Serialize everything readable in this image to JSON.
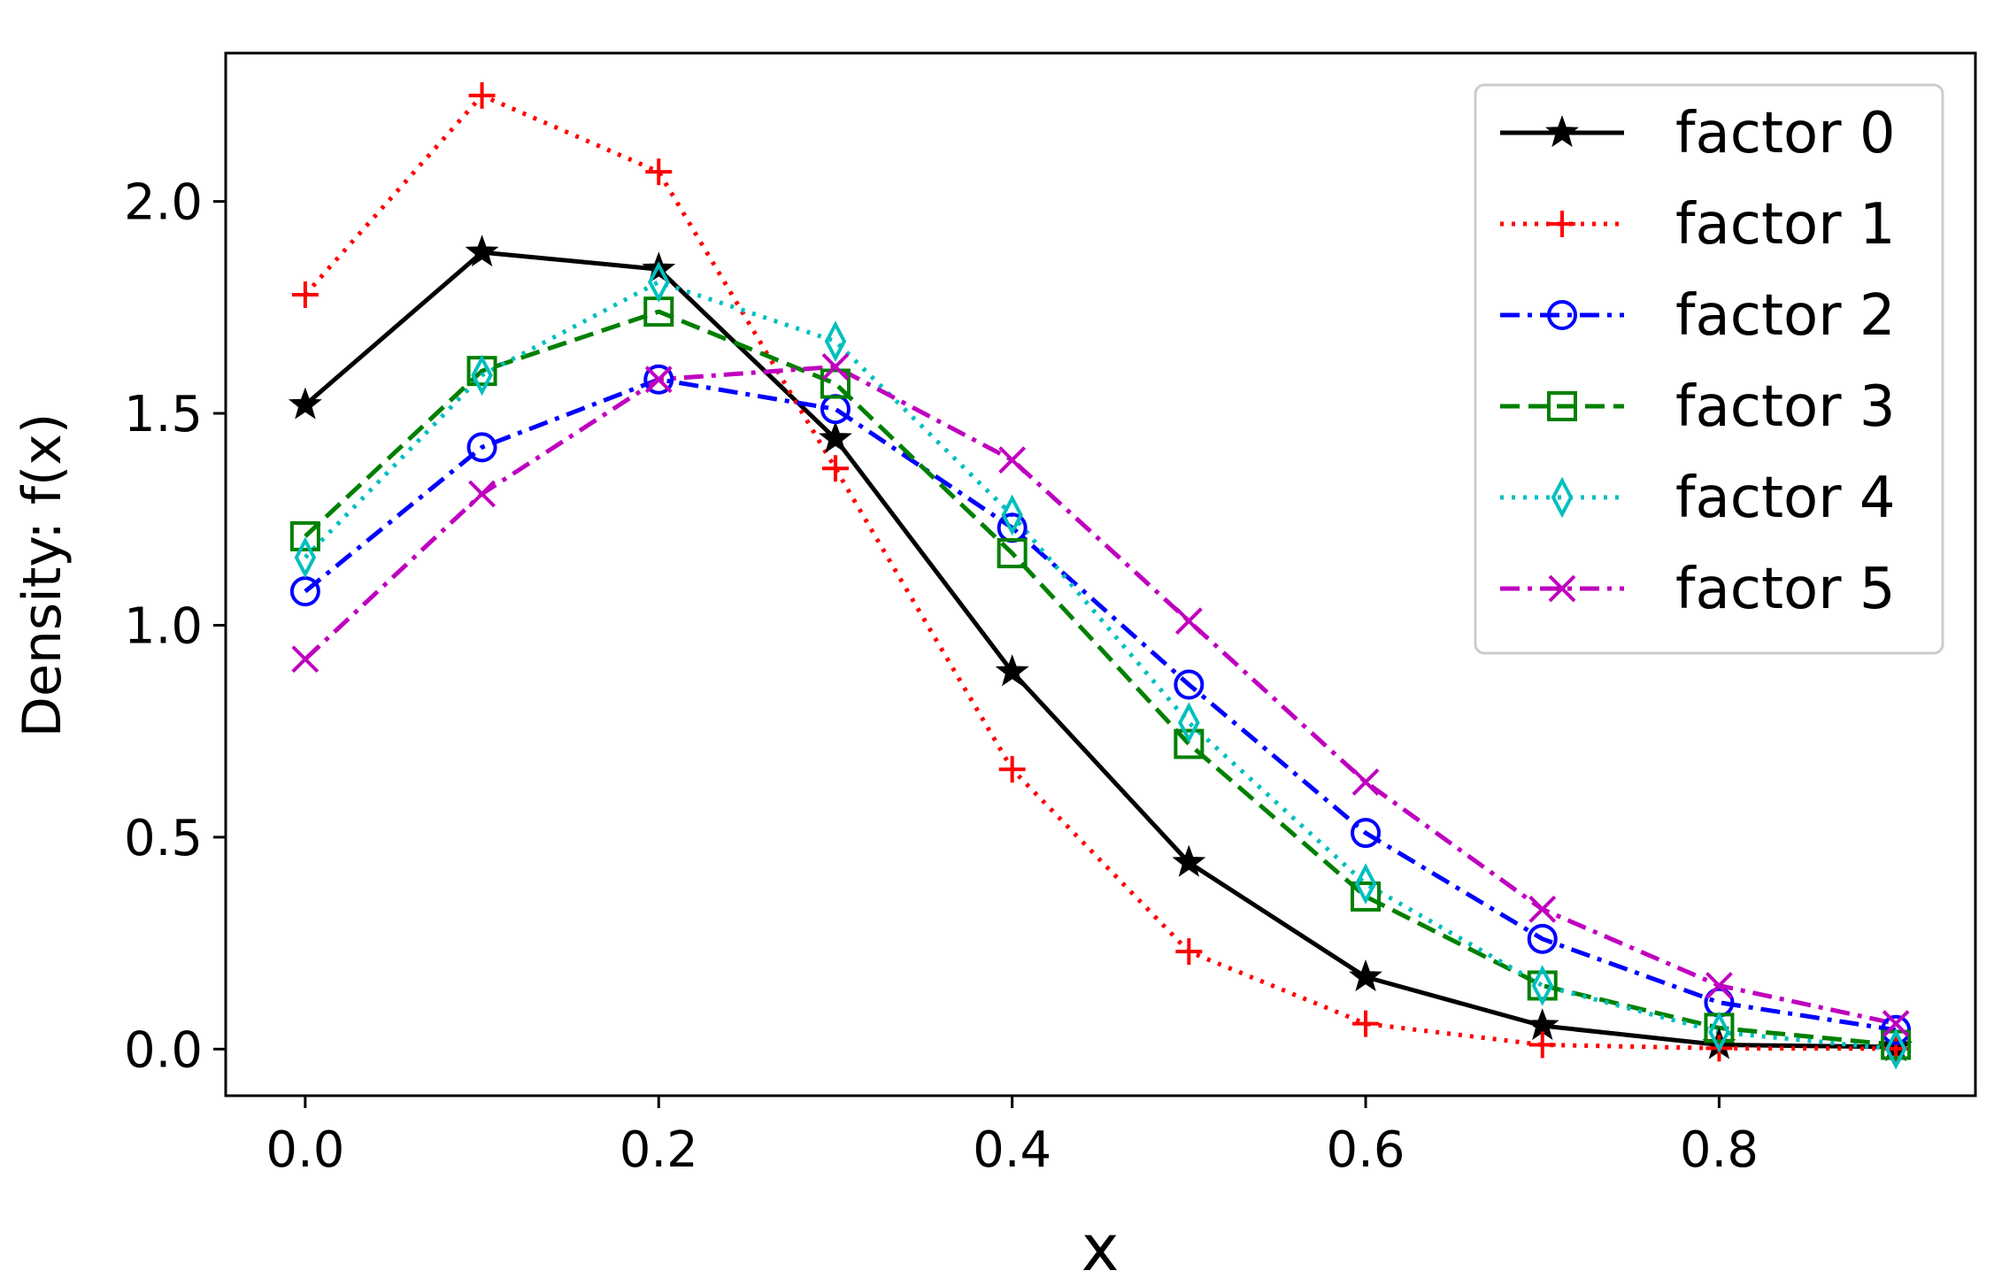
{
  "chart_data": {
    "type": "line",
    "title": "",
    "xlabel": "x",
    "ylabel": "Density:  f(x)",
    "x": [
      0.0,
      0.1,
      0.2,
      0.3,
      0.4,
      0.5,
      0.6,
      0.7,
      0.8,
      0.9
    ],
    "xlim": [
      -0.045,
      0.945
    ],
    "ylim": [
      -0.11,
      2.35
    ],
    "xticks": [
      0.0,
      0.2,
      0.4,
      0.6,
      0.8
    ],
    "xtick_labels": [
      "0.0",
      "0.2",
      "0.4",
      "0.6",
      "0.8"
    ],
    "yticks": [
      0.0,
      0.5,
      1.0,
      1.5,
      2.0
    ],
    "ytick_labels": [
      "0.0",
      "0.5",
      "1.0",
      "1.5",
      "2.0"
    ],
    "grid": false,
    "legend_position": "top-right",
    "series": [
      {
        "name": "factor 0",
        "color": "#000000",
        "dash": "solid",
        "marker": "star",
        "values": [
          1.52,
          1.88,
          1.84,
          1.44,
          0.89,
          0.44,
          0.17,
          0.055,
          0.01,
          0.005
        ]
      },
      {
        "name": "factor 1",
        "color": "#ff0000",
        "dash": "dotted",
        "marker": "plus",
        "values": [
          1.78,
          2.25,
          2.07,
          1.37,
          0.66,
          0.23,
          0.06,
          0.01,
          0.002,
          0.001
        ]
      },
      {
        "name": "factor 2",
        "color": "#0000ff",
        "dash": "dashdot",
        "marker": "circle",
        "values": [
          1.08,
          1.42,
          1.58,
          1.51,
          1.23,
          0.86,
          0.51,
          0.26,
          0.11,
          0.045
        ]
      },
      {
        "name": "factor 3",
        "color": "#008000",
        "dash": "dashed",
        "marker": "square",
        "values": [
          1.21,
          1.6,
          1.74,
          1.57,
          1.17,
          0.72,
          0.36,
          0.15,
          0.05,
          0.01
        ]
      },
      {
        "name": "factor 4",
        "color": "#00bfbf",
        "dash": "dotted",
        "marker": "diamond",
        "values": [
          1.16,
          1.59,
          1.81,
          1.67,
          1.26,
          0.77,
          0.39,
          0.15,
          0.04,
          0.0
        ]
      },
      {
        "name": "factor 5",
        "color": "#bf00bf",
        "dash": "dashdot",
        "marker": "x",
        "values": [
          0.92,
          1.31,
          1.58,
          1.61,
          1.39,
          1.01,
          0.63,
          0.33,
          0.15,
          0.06
        ]
      }
    ]
  }
}
